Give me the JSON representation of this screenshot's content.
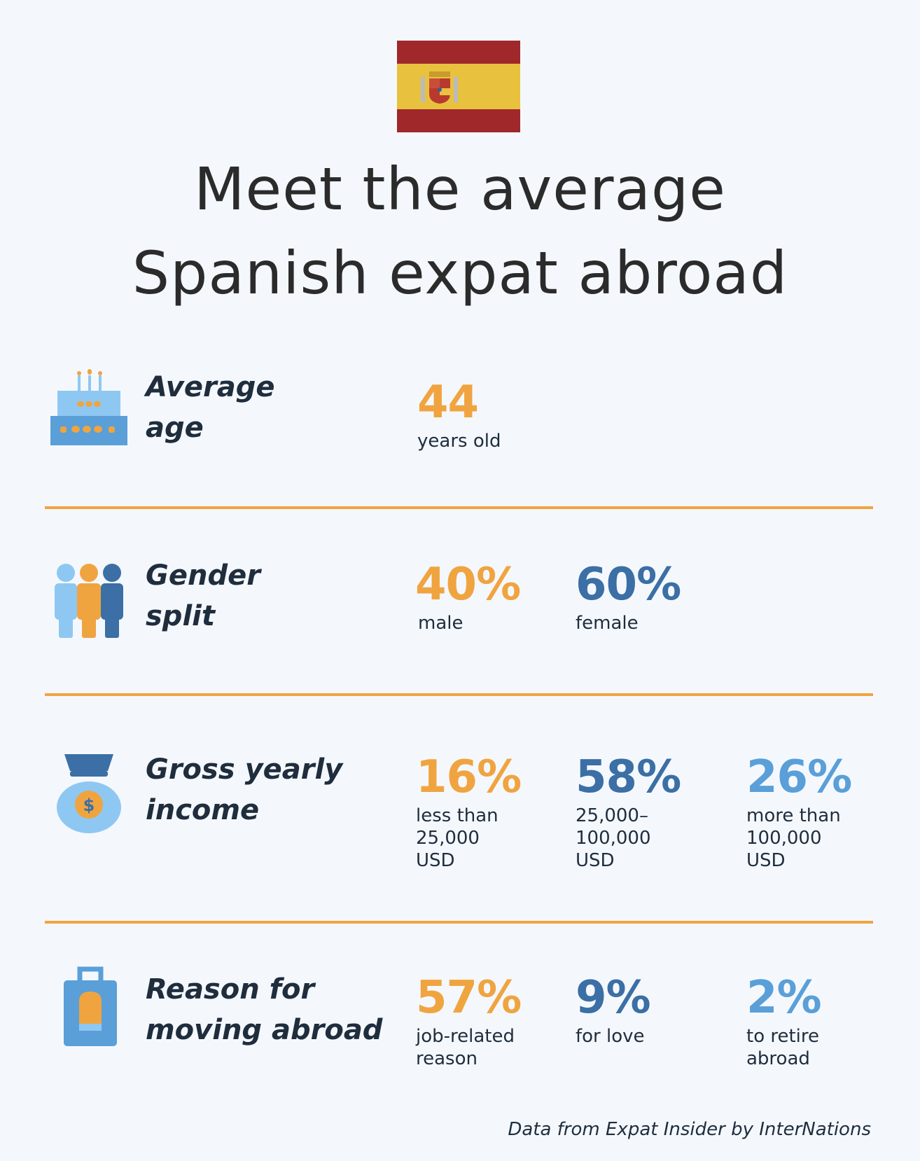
{
  "title": {
    "line1": "Meet the average",
    "line2": "Spanish expat abroad"
  },
  "colors": {
    "orange": "#f0a440",
    "navy": "#3b6fa5",
    "sky": "#5a9fd8",
    "flag_red": "#a0272a",
    "flag_yellow": "#e8c23e"
  },
  "sections": {
    "age": {
      "icon": "cake-icon",
      "label_line1": "Average",
      "label_line2": "age",
      "value": "44",
      "caption": "years old"
    },
    "gender": {
      "icon": "people-icon",
      "label_line1": "Gender",
      "label_line2": "split",
      "stats": [
        {
          "value": "40%",
          "caption": "male"
        },
        {
          "value": "60%",
          "caption": "female"
        }
      ]
    },
    "income": {
      "icon": "money-bag-icon",
      "label_line1": "Gross yearly",
      "label_line2": "income",
      "stats": [
        {
          "value": "16%",
          "caption_lines": [
            "less than",
            "25,000",
            "USD"
          ]
        },
        {
          "value": "58%",
          "caption_lines": [
            "25,000–",
            "100,000",
            "USD"
          ]
        },
        {
          "value": "26%",
          "caption_lines": [
            "more than",
            "100,000",
            "USD"
          ]
        }
      ]
    },
    "reason": {
      "icon": "suitcase-icon",
      "label_line1": "Reason for",
      "label_line2": "moving abroad",
      "stats": [
        {
          "value": "57%",
          "caption_lines": [
            "job-related",
            "reason"
          ]
        },
        {
          "value": "9%",
          "caption_lines": [
            "for love"
          ]
        },
        {
          "value": "2%",
          "caption_lines": [
            "to retire",
            "abroad"
          ]
        }
      ]
    }
  },
  "footer": "Data from Expat Insider by InterNations"
}
